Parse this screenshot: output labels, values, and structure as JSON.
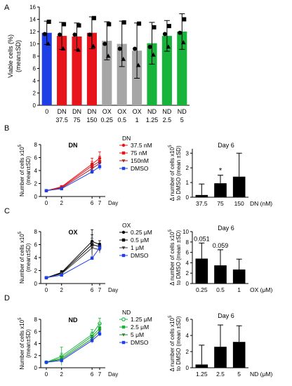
{
  "colors": {
    "red": "#e8141b",
    "gray": "#a6a6a6",
    "green": "#18b33a",
    "blue": "#1f3fe6",
    "black": "#000000",
    "dn_dark": "#a8202a",
    "ox_dark": "#3c3c3c",
    "nd_dark": "#2a8a2a"
  },
  "panels": {
    "A": "A",
    "B": "B",
    "C": "C",
    "D": "D"
  },
  "chart_data": [
    {
      "type": "bar",
      "panel": "A",
      "categories": [
        "0",
        "DN 37.5",
        "DN 75",
        "DN 150",
        "OX 0.25",
        "OX 0.5",
        "OX 1",
        "ND 1.25",
        "ND 2.5",
        "ND 5"
      ],
      "tick_lines": [
        [
          "0"
        ],
        [
          "DN",
          "37.5"
        ],
        [
          "DN",
          "75"
        ],
        [
          "DN",
          "150"
        ],
        [
          "OX",
          "0.25"
        ],
        [
          "OX",
          "0.5"
        ],
        [
          "OX",
          "1"
        ],
        [
          "ND",
          "1.25"
        ],
        [
          "ND",
          "2.5"
        ],
        [
          "ND",
          "5"
        ]
      ],
      "values": [
        11.8,
        11.3,
        11.2,
        11.8,
        10.5,
        10.0,
        8.9,
        10.1,
        11.3,
        12.0
      ],
      "sd": [
        1.9,
        2.2,
        2.2,
        2.6,
        3.1,
        3.7,
        4.5,
        3.4,
        2.5,
        2.9
      ],
      "bar_colors": [
        "blue",
        "red",
        "red",
        "red",
        "gray",
        "gray",
        "gray",
        "green",
        "green",
        "green"
      ],
      "points": [
        [
          13.6,
          11.6,
          10.0
        ],
        [
          13.2,
          11.5,
          9.2
        ],
        [
          13.0,
          11.5,
          9.0
        ],
        [
          14.2,
          11.5,
          9.6
        ],
        [
          13.2,
          10.0,
          8.0
        ],
        [
          13.5,
          9.2,
          7.5
        ],
        [
          13.3,
          9.2,
          6.5
        ],
        [
          12.7,
          9.5,
          8.2
        ],
        [
          12.9,
          11.6,
          9.5
        ],
        [
          14.0,
          11.8,
          10.2
        ]
      ],
      "ylabel": "Viable cells (%)",
      "ylabel2": "(mean±SD)",
      "yticks": [
        0,
        2,
        4,
        6,
        8,
        10,
        12,
        14,
        16
      ],
      "ylim": [
        0,
        16
      ]
    },
    {
      "type": "line",
      "panel": "B",
      "title": "DN",
      "x": [
        0,
        2,
        6,
        7
      ],
      "xlabel": "Day",
      "ylabel": "Number of cells x10",
      "ylabel_sup": "5",
      "ylabel2": "(mean±SD)",
      "yticks": [
        0,
        2,
        4,
        6,
        8
      ],
      "ylim": [
        0,
        8
      ],
      "legend_title": "DN",
      "series": [
        {
          "name": "37.5 nM",
          "values": [
            0.9,
            1.5,
            5.0,
            5.9
          ],
          "err": [
            0.1,
            0.2,
            0.9,
            1.0
          ],
          "color": "red",
          "marker": "circle"
        },
        {
          "name": "75 nM",
          "values": [
            0.9,
            1.4,
            4.7,
            5.4
          ],
          "err": [
            0.1,
            0.2,
            0.7,
            0.8
          ],
          "color": "red",
          "marker": "square"
        },
        {
          "name": "150nM",
          "values": [
            0.9,
            1.3,
            4.3,
            5.1
          ],
          "err": [
            0.1,
            0.2,
            0.8,
            0.7
          ],
          "color": "dn_dark",
          "marker": "tri-down"
        },
        {
          "name": "DMSO",
          "values": [
            0.9,
            1.2,
            3.8,
            4.6
          ],
          "err": [
            0.1,
            0.1,
            0.3,
            0.5
          ],
          "color": "blue",
          "marker": "square"
        }
      ]
    },
    {
      "type": "bar",
      "panel": "B",
      "title": "Day 6",
      "categories": [
        "37.5",
        "75",
        "150"
      ],
      "values": [
        0.15,
        0.95,
        1.4
      ],
      "sd": [
        0.75,
        0.55,
        1.6
      ],
      "annotations": [
        "",
        "*",
        ""
      ],
      "xlabel": "DN (nM)",
      "ylabel": "Δ number of cells x10",
      "ylabel_sup": "5",
      "ylabel2": "to DMSO (mean ±SD)",
      "yticks": [
        0,
        1,
        2,
        3
      ],
      "ylim": [
        0,
        3.3
      ]
    },
    {
      "type": "line",
      "panel": "C",
      "title": "OX",
      "x": [
        0,
        2,
        6,
        7
      ],
      "xlabel": "Day",
      "ylabel": "Number of cells x10",
      "ylabel_sup": "5",
      "ylabel2": "(mean±SD)",
      "yticks": [
        0,
        2,
        4,
        6,
        8
      ],
      "ylim": [
        0,
        8
      ],
      "legend_title": "OX",
      "series": [
        {
          "name": "0.25 μM",
          "values": [
            0.9,
            1.7,
            6.5,
            6.0
          ],
          "err": [
            0.1,
            0.3,
            1.8,
            0.6
          ],
          "color": "black",
          "marker": "circle"
        },
        {
          "name": "0.5 μM",
          "values": [
            0.9,
            1.6,
            6.0,
            5.7
          ],
          "err": [
            0.1,
            0.3,
            1.5,
            0.5
          ],
          "color": "black",
          "marker": "square"
        },
        {
          "name": "1 μM",
          "values": [
            0.9,
            1.5,
            5.5,
            5.2
          ],
          "err": [
            0.1,
            0.2,
            1.5,
            0.5
          ],
          "color": "ox_dark",
          "marker": "tri-down"
        },
        {
          "name": "DMSO",
          "values": [
            0.9,
            1.3,
            3.9,
            5.5
          ],
          "err": [
            0.1,
            0.1,
            0.2,
            0.4
          ],
          "color": "blue",
          "marker": "square"
        }
      ]
    },
    {
      "type": "bar",
      "panel": "C",
      "title": "Day 6",
      "categories": [
        "0.25",
        "0.5",
        "1"
      ],
      "values": [
        4.8,
        3.5,
        2.7
      ],
      "sd": [
        3.0,
        3.0,
        2.0
      ],
      "annotations": [
        "0.051",
        "0.059",
        ""
      ],
      "xlabel": "OX (μM)",
      "ylabel": "Δ number of cells x10",
      "ylabel_sup": "5",
      "ylabel2": "to DMSO (mean ±SD)",
      "yticks": [
        0,
        2,
        4,
        6,
        8,
        10
      ],
      "ylim": [
        0,
        10
      ]
    },
    {
      "type": "line",
      "panel": "D",
      "title": "ND",
      "x": [
        0,
        2,
        6,
        7
      ],
      "xlabel": "Day",
      "ylabel": "Number of cells x10",
      "ylabel_sup": "5",
      "ylabel2": "(mean±SD)",
      "yticks": [
        0,
        2,
        4,
        6,
        8
      ],
      "ylim": [
        0,
        8
      ],
      "legend_title": "ND",
      "series": [
        {
          "name": "1.25 μM",
          "values": [
            0.9,
            1.9,
            5.5,
            7.3
          ],
          "err": [
            0.1,
            1.5,
            0.8,
            0.9
          ],
          "color": "green",
          "marker": "circle-open"
        },
        {
          "name": "2.5 μM",
          "values": [
            0.9,
            1.6,
            5.2,
            6.5
          ],
          "err": [
            0.1,
            0.8,
            0.7,
            0.8
          ],
          "color": "green",
          "marker": "square"
        },
        {
          "name": "5 μM",
          "values": [
            0.9,
            1.4,
            4.8,
            6.1
          ],
          "err": [
            0.1,
            0.5,
            0.6,
            0.7
          ],
          "color": "nd_dark",
          "marker": "tri-down"
        },
        {
          "name": "DMSO",
          "values": [
            0.9,
            1.2,
            4.5,
            5.6
          ],
          "err": [
            0.1,
            0.2,
            0.4,
            0.4
          ],
          "color": "blue",
          "marker": "square"
        }
      ]
    },
    {
      "type": "bar",
      "panel": "D",
      "title": "Day 6",
      "categories": [
        "1.25",
        "2.5",
        "5"
      ],
      "values": [
        0.4,
        2.6,
        3.2
      ],
      "sd": [
        2.4,
        2.7,
        2.0
      ],
      "annotations": [
        "",
        "",
        ""
      ],
      "xlabel": "ND (μM)",
      "ylabel": "Δ number of cells x10",
      "ylabel_sup": "5",
      "ylabel2": "to DMSO (mean ±SD)",
      "yticks": [
        0,
        2,
        4,
        6
      ],
      "ylim": [
        0,
        6
      ]
    }
  ]
}
